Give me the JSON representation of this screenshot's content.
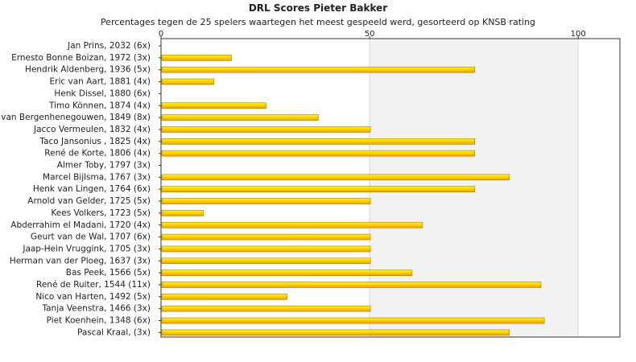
{
  "chart_data": {
    "type": "bar",
    "orientation": "horizontal",
    "title": "DRL Scores Pieter Bakker",
    "subtitle": "Percentages tegen de 25 spelers waartegen het meest gespeeld werd, gesorteerd op KNSB rating",
    "xlim": [
      0,
      110
    ],
    "xticks": [
      0,
      50,
      100
    ],
    "categories": [
      "Jan Prins, 2032 (6x)",
      "Ernesto Bonne Boizan, 1972 (3x)",
      "Hendrik Aldenberg, 1936 (5x)",
      "Eric van Aart, 1881 (4x)",
      "Henk Dissel, 1880 (6x)",
      "Timo Können, 1874 (4x)",
      "van Bergenhenegouwen, 1849 (8x)",
      "Jacco Vermeulen, 1832 (4x)",
      "Taco Jansonius , 1825 (4x)",
      "René de Korte, 1806 (4x)",
      "Almer Toby, 1797 (3x)",
      "Marcel Bijlsma, 1767 (3x)",
      "Henk van Lingen, 1764 (6x)",
      "Arnold van Gelder, 1725 (5x)",
      "Kees Volkers, 1723 (5x)",
      "Abderrahim el Madani, 1720 (4x)",
      "Geurt van de Wal, 1707 (6x)",
      "Jaap-Hein Vruggink, 1705 (3x)",
      "Herman van der Ploeg, 1637 (3x)",
      "Bas Peek, 1566 (5x)",
      "René de Ruiter, 1544 (11x)",
      "Nico van Harten, 1492 (5x)",
      "Tanja Veenstra, 1466 (3x)",
      "Piet Koenhein, 1348 (6x)",
      "Pascal Kraal,  (3x)"
    ],
    "values": [
      0,
      16.7,
      75,
      12.5,
      0,
      25,
      37.5,
      50,
      75,
      75,
      0,
      83.3,
      75,
      50,
      10,
      62.5,
      50,
      50,
      50,
      60,
      90.9,
      30,
      50,
      91.7,
      83.3
    ],
    "grid": true,
    "colors": {
      "bar_light": "#ffff00",
      "bar_dark": "#f0a000",
      "bar_edge": "#c07000",
      "plot_bg_band": "#f2f2f2",
      "gridline": "#d8d8d8"
    }
  }
}
